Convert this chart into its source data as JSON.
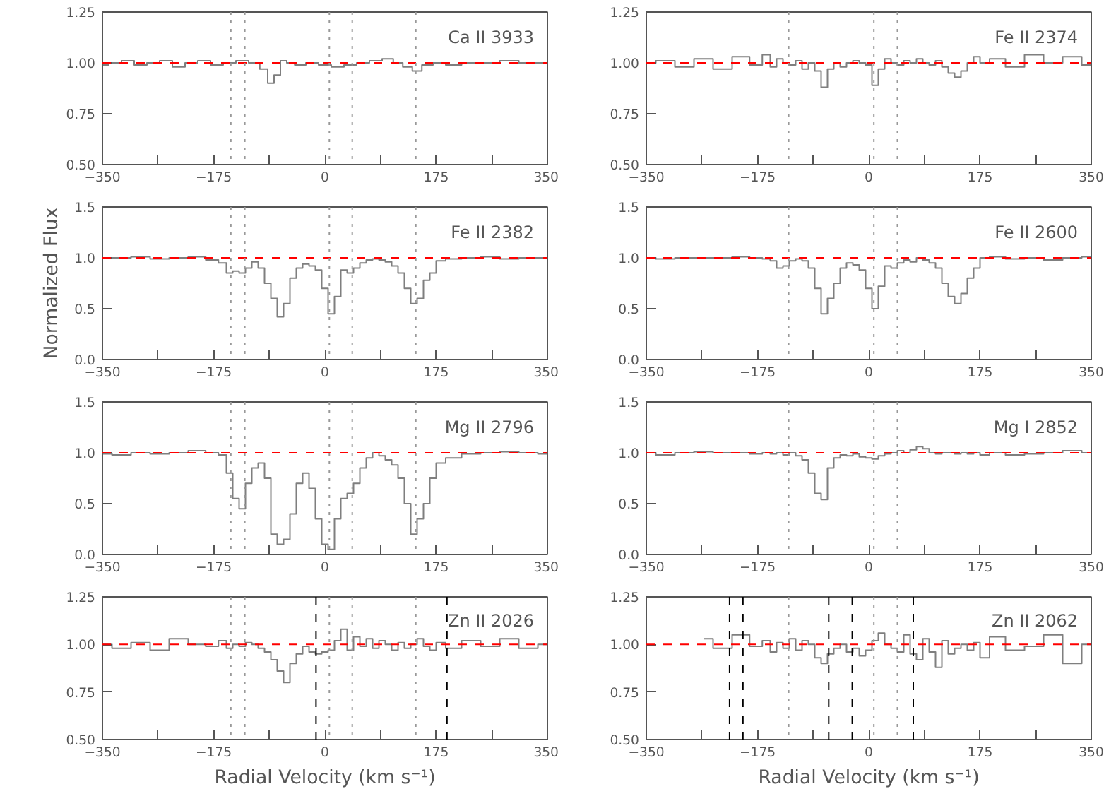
{
  "chart_data": [
    {
      "type": "step",
      "annotations": [
        "Ca II 3933"
      ],
      "xlim": [
        -350,
        350
      ],
      "ylim": [
        0.5,
        1.25
      ],
      "xticks": [
        -350,
        {
          "value": -262.5,
          "label": null
        },
        -175,
        {
          "value": -87.5,
          "label": null
        },
        0,
        {
          "value": 87.5,
          "label": null
        },
        175,
        {
          "value": 262.5,
          "label": null
        },
        350
      ],
      "yticks": [
        {
          "value": 0.5,
          "label": "0.50"
        },
        {
          "value": 0.75,
          "label": "0.75"
        },
        {
          "value": 1.0,
          "label": "1.00"
        },
        {
          "value": 1.25,
          "label": "1.25"
        }
      ],
      "x": [
        -350,
        -330,
        -310,
        -290,
        -270,
        -250,
        -230,
        -210,
        -190,
        -170,
        -150,
        -130,
        -110,
        -95,
        -85,
        -75,
        -65,
        -55,
        -40,
        -20,
        0,
        20,
        40,
        60,
        80,
        100,
        115,
        130,
        145,
        160,
        180,
        200,
        230,
        260,
        290,
        320,
        350
      ],
      "series": [
        {
          "color": "#7f7f7f",
          "values": [
            0.99,
            1.0,
            1.01,
            0.99,
            1.0,
            1.01,
            0.98,
            1.0,
            1.01,
            0.99,
            1.0,
            1.01,
            1.0,
            0.97,
            0.9,
            0.94,
            1.01,
            1.0,
            0.99,
            1.0,
            0.99,
            0.98,
            0.99,
            1.0,
            1.01,
            1.02,
            1.0,
            0.98,
            0.96,
            0.99,
            1.0,
            0.99,
            1.0,
            1.0,
            1.01,
            1.0,
            1.0
          ]
        }
      ],
      "ref_lines": [
        {
          "axis": "y",
          "value": 1.0,
          "color": "#ff0000",
          "line_style": "dashed"
        },
        {
          "axis": "x",
          "value": -148,
          "color": "#999999",
          "line_style": "dotted"
        },
        {
          "axis": "x",
          "value": -126,
          "color": "#999999",
          "line_style": "dotted"
        },
        {
          "axis": "x",
          "value": 7,
          "color": "#999999",
          "line_style": "dotted"
        },
        {
          "axis": "x",
          "value": 43,
          "color": "#999999",
          "line_style": "dotted"
        },
        {
          "axis": "x",
          "value": 143,
          "color": "#999999",
          "line_style": "dotted"
        }
      ]
    },
    {
      "type": "step",
      "annotations": [
        "Fe II 2374"
      ],
      "xlim": [
        -350,
        350
      ],
      "ylim": [
        0.5,
        1.25
      ],
      "xticks": [
        -350,
        {
          "value": -262.5,
          "label": null
        },
        -175,
        {
          "value": -87.5,
          "label": null
        },
        0,
        {
          "value": 87.5,
          "label": null
        },
        175,
        {
          "value": 262.5,
          "label": null
        },
        350
      ],
      "yticks": [
        {
          "value": 0.5,
          "label": "0.50"
        },
        {
          "value": 0.75,
          "label": "0.75"
        },
        {
          "value": 1.0,
          "label": "1.00"
        },
        {
          "value": 1.25,
          "label": "1.25"
        }
      ],
      "x": [
        -350,
        -320,
        -290,
        -260,
        -230,
        -200,
        -175,
        -160,
        -150,
        -140,
        -130,
        -120,
        -110,
        -100,
        -90,
        -80,
        -70,
        -60,
        -50,
        -40,
        -30,
        -20,
        -10,
        0,
        10,
        20,
        30,
        40,
        50,
        60,
        70,
        80,
        90,
        100,
        110,
        120,
        130,
        140,
        150,
        160,
        170,
        180,
        200,
        230,
        260,
        290,
        320,
        350
      ],
      "series": [
        {
          "color": "#7f7f7f",
          "values": [
            1.0,
            1.01,
            0.98,
            1.02,
            0.97,
            1.03,
            0.99,
            1.04,
            0.98,
            1.02,
            1.0,
            0.99,
            1.01,
            0.97,
            1.0,
            0.96,
            0.88,
            0.97,
            1.0,
            0.98,
            1.0,
            1.01,
            1.0,
            0.99,
            0.89,
            0.97,
            1.02,
            1.0,
            0.99,
            1.01,
            1.0,
            1.02,
            1.0,
            0.99,
            1.01,
            0.98,
            0.95,
            0.93,
            0.96,
            1.0,
            1.03,
            1.0,
            1.02,
            0.98,
            1.04,
            1.0,
            1.03,
            0.99
          ]
        }
      ],
      "ref_lines": [
        {
          "axis": "y",
          "value": 1.0,
          "color": "#ff0000",
          "line_style": "dashed"
        },
        {
          "axis": "x",
          "value": -126,
          "color": "#999999",
          "line_style": "dotted"
        },
        {
          "axis": "x",
          "value": 8,
          "color": "#999999",
          "line_style": "dotted"
        },
        {
          "axis": "x",
          "value": 45,
          "color": "#999999",
          "line_style": "dotted"
        }
      ]
    },
    {
      "type": "step",
      "annotations": [
        "Fe II 2382"
      ],
      "ylabel": "Normalized Flux",
      "xlim": [
        -350,
        350
      ],
      "ylim": [
        0,
        1.5
      ],
      "xticks": [
        -350,
        {
          "value": -262.5,
          "label": null
        },
        -175,
        {
          "value": -87.5,
          "label": null
        },
        0,
        {
          "value": 87.5,
          "label": null
        },
        175,
        {
          "value": 262.5,
          "label": null
        },
        350
      ],
      "yticks": [
        {
          "value": 0,
          "label": "0.0"
        },
        {
          "value": 0.5,
          "label": "0.5"
        },
        {
          "value": 1.0,
          "label": "1.0"
        },
        {
          "value": 1.5,
          "label": "1.5"
        }
      ],
      "x": [
        -350,
        -320,
        -290,
        -260,
        -230,
        -200,
        -175,
        -160,
        -150,
        -140,
        -130,
        -120,
        -110,
        -100,
        -90,
        -80,
        -70,
        -60,
        -50,
        -40,
        -30,
        -20,
        -10,
        0,
        10,
        20,
        30,
        40,
        50,
        60,
        70,
        80,
        90,
        100,
        110,
        120,
        130,
        140,
        150,
        160,
        170,
        180,
        200,
        230,
        260,
        290,
        320,
        350
      ],
      "series": [
        {
          "color": "#7f7f7f",
          "values": [
            1.0,
            1.0,
            1.01,
            0.99,
            1.0,
            1.01,
            0.98,
            0.95,
            0.85,
            0.87,
            0.85,
            0.9,
            0.96,
            0.9,
            0.75,
            0.6,
            0.42,
            0.55,
            0.8,
            0.9,
            0.94,
            0.92,
            0.88,
            0.7,
            0.45,
            0.62,
            0.88,
            0.85,
            0.9,
            0.95,
            0.98,
            0.99,
            0.98,
            0.96,
            0.92,
            0.85,
            0.7,
            0.55,
            0.6,
            0.78,
            0.85,
            0.97,
            0.99,
            1.0,
            1.01,
            0.99,
            1.0,
            1.0
          ]
        }
      ],
      "ref_lines": [
        {
          "axis": "y",
          "value": 1.0,
          "color": "#ff0000",
          "line_style": "dashed"
        },
        {
          "axis": "x",
          "value": -148,
          "color": "#999999",
          "line_style": "dotted"
        },
        {
          "axis": "x",
          "value": -126,
          "color": "#999999",
          "line_style": "dotted"
        },
        {
          "axis": "x",
          "value": 7,
          "color": "#999999",
          "line_style": "dotted"
        },
        {
          "axis": "x",
          "value": 43,
          "color": "#999999",
          "line_style": "dotted"
        },
        {
          "axis": "x",
          "value": 143,
          "color": "#999999",
          "line_style": "dotted"
        }
      ]
    },
    {
      "type": "step",
      "annotations": [
        "Fe II 2600"
      ],
      "xlim": [
        -350,
        350
      ],
      "ylim": [
        0,
        1.5
      ],
      "xticks": [
        -350,
        {
          "value": -262.5,
          "label": null
        },
        -175,
        {
          "value": -87.5,
          "label": null
        },
        0,
        {
          "value": 87.5,
          "label": null
        },
        175,
        {
          "value": 262.5,
          "label": null
        },
        350
      ],
      "yticks": [
        {
          "value": 0,
          "label": "0.0"
        },
        {
          "value": 0.5,
          "label": "0.5"
        },
        {
          "value": 1.0,
          "label": "1.0"
        },
        {
          "value": 1.5,
          "label": "1.5"
        }
      ],
      "x": [
        -350,
        -320,
        -290,
        -260,
        -230,
        -200,
        -175,
        -160,
        -150,
        -140,
        -130,
        -120,
        -110,
        -100,
        -90,
        -80,
        -70,
        -60,
        -50,
        -40,
        -30,
        -20,
        -10,
        0,
        10,
        20,
        30,
        40,
        50,
        60,
        70,
        80,
        90,
        100,
        110,
        120,
        130,
        140,
        150,
        160,
        170,
        180,
        200,
        230,
        260,
        290,
        320,
        350
      ],
      "series": [
        {
          "color": "#7f7f7f",
          "values": [
            1.0,
            0.99,
            1.0,
            1.0,
            1.0,
            1.01,
            1.0,
            0.99,
            0.97,
            0.9,
            0.92,
            0.97,
            0.99,
            0.97,
            0.9,
            0.7,
            0.45,
            0.6,
            0.75,
            0.9,
            0.95,
            0.93,
            0.88,
            0.7,
            0.5,
            0.72,
            0.92,
            0.9,
            0.95,
            0.98,
            0.96,
            1.0,
            0.98,
            0.95,
            0.9,
            0.75,
            0.62,
            0.55,
            0.65,
            0.8,
            0.9,
            1.0,
            1.01,
            0.99,
            1.0,
            0.98,
            1.0,
            1.01
          ]
        }
      ],
      "ref_lines": [
        {
          "axis": "y",
          "value": 1.0,
          "color": "#ff0000",
          "line_style": "dashed"
        },
        {
          "axis": "x",
          "value": -126,
          "color": "#999999",
          "line_style": "dotted"
        },
        {
          "axis": "x",
          "value": 8,
          "color": "#999999",
          "line_style": "dotted"
        },
        {
          "axis": "x",
          "value": 45,
          "color": "#999999",
          "line_style": "dotted"
        }
      ]
    },
    {
      "type": "step",
      "annotations": [
        "Mg II 2796"
      ],
      "xlim": [
        -350,
        350
      ],
      "ylim": [
        0,
        1.5
      ],
      "xticks": [
        -350,
        {
          "value": -262.5,
          "label": null
        },
        -175,
        {
          "value": -87.5,
          "label": null
        },
        0,
        {
          "value": 87.5,
          "label": null
        },
        175,
        {
          "value": 262.5,
          "label": null
        },
        350
      ],
      "yticks": [
        {
          "value": 0,
          "label": "0.0"
        },
        {
          "value": 0.5,
          "label": "0.5"
        },
        {
          "value": 1.0,
          "label": "1.0"
        },
        {
          "value": 1.5,
          "label": "1.5"
        }
      ],
      "x": [
        -350,
        -320,
        -290,
        -260,
        -230,
        -200,
        -175,
        -160,
        -150,
        -140,
        -130,
        -120,
        -110,
        -100,
        -90,
        -80,
        -70,
        -60,
        -50,
        -40,
        -30,
        -20,
        -10,
        0,
        10,
        20,
        30,
        40,
        50,
        60,
        70,
        80,
        90,
        100,
        110,
        120,
        130,
        140,
        150,
        160,
        170,
        180,
        200,
        230,
        260,
        290,
        320,
        350
      ],
      "series": [
        {
          "color": "#7f7f7f",
          "values": [
            0.99,
            0.98,
            1.0,
            0.99,
            1.0,
            1.02,
            1.0,
            0.98,
            0.8,
            0.55,
            0.45,
            0.7,
            0.85,
            0.9,
            0.75,
            0.2,
            0.1,
            0.15,
            0.4,
            0.7,
            0.8,
            0.65,
            0.35,
            0.1,
            0.05,
            0.35,
            0.55,
            0.6,
            0.7,
            0.85,
            0.95,
            1.0,
            0.97,
            0.93,
            0.88,
            0.75,
            0.5,
            0.2,
            0.35,
            0.5,
            0.75,
            0.9,
            0.95,
            0.99,
            1.0,
            1.01,
            1.0,
            0.99
          ]
        }
      ],
      "ref_lines": [
        {
          "axis": "y",
          "value": 1.0,
          "color": "#ff0000",
          "line_style": "dashed"
        },
        {
          "axis": "x",
          "value": -148,
          "color": "#999999",
          "line_style": "dotted"
        },
        {
          "axis": "x",
          "value": -126,
          "color": "#999999",
          "line_style": "dotted"
        },
        {
          "axis": "x",
          "value": 7,
          "color": "#999999",
          "line_style": "dotted"
        },
        {
          "axis": "x",
          "value": 43,
          "color": "#999999",
          "line_style": "dotted"
        },
        {
          "axis": "x",
          "value": 143,
          "color": "#999999",
          "line_style": "dotted"
        }
      ]
    },
    {
      "type": "step",
      "annotations": [
        "Mg I 2852"
      ],
      "xlim": [
        -350,
        350
      ],
      "ylim": [
        0,
        1.5
      ],
      "xticks": [
        -350,
        {
          "value": -262.5,
          "label": null
        },
        -175,
        {
          "value": -87.5,
          "label": null
        },
        0,
        {
          "value": 87.5,
          "label": null
        },
        175,
        {
          "value": 262.5,
          "label": null
        },
        350
      ],
      "yticks": [
        {
          "value": 0,
          "label": "0.0"
        },
        {
          "value": 0.5,
          "label": "0.5"
        },
        {
          "value": 1.0,
          "label": "1.0"
        },
        {
          "value": 1.5,
          "label": "1.5"
        }
      ],
      "x": [
        -350,
        -320,
        -290,
        -260,
        -230,
        -200,
        -175,
        -160,
        -150,
        -140,
        -130,
        -120,
        -110,
        -100,
        -90,
        -80,
        -70,
        -60,
        -50,
        -40,
        -30,
        -20,
        -10,
        0,
        10,
        20,
        30,
        40,
        50,
        60,
        70,
        80,
        90,
        100,
        110,
        120,
        130,
        140,
        150,
        160,
        170,
        180,
        200,
        230,
        260,
        290,
        320,
        350
      ],
      "series": [
        {
          "color": "#7f7f7f",
          "values": [
            1.0,
            0.98,
            1.0,
            1.01,
            1.0,
            1.0,
            0.99,
            1.0,
            0.99,
            1.0,
            0.98,
            1.0,
            0.97,
            0.93,
            0.8,
            0.6,
            0.54,
            0.85,
            0.95,
            0.98,
            0.97,
            0.99,
            0.96,
            0.95,
            0.94,
            0.97,
            0.99,
            1.0,
            1.02,
            1.0,
            1.03,
            1.06,
            1.04,
            1.0,
            0.99,
            1.0,
            1.0,
            0.99,
            1.0,
            0.99,
            1.0,
            0.98,
            1.0,
            0.98,
            0.99,
            1.0,
            1.02,
            1.0
          ]
        }
      ],
      "ref_lines": [
        {
          "axis": "y",
          "value": 1.0,
          "color": "#ff0000",
          "line_style": "dashed"
        },
        {
          "axis": "x",
          "value": -126,
          "color": "#999999",
          "line_style": "dotted"
        },
        {
          "axis": "x",
          "value": 8,
          "color": "#999999",
          "line_style": "dotted"
        },
        {
          "axis": "x",
          "value": 45,
          "color": "#999999",
          "line_style": "dotted"
        }
      ]
    },
    {
      "type": "step",
      "annotations": [
        "Zn II 2026"
      ],
      "xlabel": "Radial Velocity (km s⁻¹)",
      "xlim": [
        -350,
        350
      ],
      "ylim": [
        0.5,
        1.25
      ],
      "xticks": [
        -350,
        {
          "value": -262.5,
          "label": null
        },
        -175,
        {
          "value": -87.5,
          "label": null
        },
        0,
        {
          "value": 87.5,
          "label": null
        },
        175,
        {
          "value": 262.5,
          "label": null
        },
        350
      ],
      "yticks": [
        {
          "value": 0.5,
          "label": "0.50"
        },
        {
          "value": 0.75,
          "label": "0.75"
        },
        {
          "value": 1.0,
          "label": "1.00"
        },
        {
          "value": 1.25,
          "label": "1.25"
        }
      ],
      "x": [
        -350,
        -320,
        -290,
        -260,
        -230,
        -200,
        -175,
        -160,
        -150,
        -140,
        -130,
        -120,
        -110,
        -100,
        -90,
        -80,
        -70,
        -60,
        -50,
        -40,
        -30,
        -20,
        -10,
        0,
        10,
        20,
        30,
        40,
        50,
        60,
        70,
        80,
        90,
        100,
        110,
        120,
        130,
        140,
        150,
        160,
        170,
        180,
        200,
        230,
        260,
        290,
        320,
        350
      ],
      "series": [
        {
          "color": "#7f7f7f",
          "values": [
            1.0,
            0.98,
            1.01,
            0.97,
            1.03,
            1.0,
            0.99,
            1.02,
            0.98,
            1.0,
            0.99,
            1.01,
            1.0,
            0.98,
            0.96,
            0.92,
            0.86,
            0.8,
            0.9,
            0.95,
            0.99,
            0.96,
            0.95,
            0.96,
            0.97,
            1.02,
            1.08,
            0.97,
            1.04,
            0.99,
            1.03,
            0.98,
            1.02,
            1.0,
            0.97,
            1.01,
            0.98,
            1.0,
            1.03,
            0.99,
            0.97,
            1.01,
            0.98,
            1.02,
            0.99,
            1.03,
            0.98,
            1.0
          ]
        }
      ],
      "ref_lines": [
        {
          "axis": "y",
          "value": 1.0,
          "color": "#ff0000",
          "line_style": "dashed"
        },
        {
          "axis": "x",
          "value": -148,
          "color": "#999999",
          "line_style": "dotted"
        },
        {
          "axis": "x",
          "value": -126,
          "color": "#999999",
          "line_style": "dotted"
        },
        {
          "axis": "x",
          "value": 7,
          "color": "#999999",
          "line_style": "dotted"
        },
        {
          "axis": "x",
          "value": 43,
          "color": "#999999",
          "line_style": "dotted"
        },
        {
          "axis": "x",
          "value": 143,
          "color": "#999999",
          "line_style": "dotted"
        },
        {
          "axis": "x",
          "value": -14,
          "color": "#000000",
          "line_style": "dashed"
        },
        {
          "axis": "x",
          "value": 192,
          "color": "#000000",
          "line_style": "dashed"
        }
      ]
    },
    {
      "type": "step",
      "annotations": [
        "Zn II 2062"
      ],
      "xlabel": "Radial Velocity (km s⁻¹)",
      "xlim": [
        -350,
        350
      ],
      "ylim": [
        0.5,
        1.25
      ],
      "xticks": [
        -350,
        {
          "value": -262.5,
          "label": null
        },
        -175,
        {
          "value": -87.5,
          "label": null
        },
        0,
        {
          "value": 87.5,
          "label": null
        },
        175,
        {
          "value": 262.5,
          "label": null
        },
        350
      ],
      "yticks": [
        {
          "value": 0.5,
          "label": "0.50"
        },
        {
          "value": 0.75,
          "label": "0.75"
        },
        {
          "value": 1.0,
          "label": "1.00"
        },
        {
          "value": 1.25,
          "label": "1.25"
        }
      ],
      "x": [
        -260,
        -230,
        -200,
        -175,
        -160,
        -150,
        -140,
        -130,
        -120,
        -110,
        -100,
        -90,
        -80,
        -70,
        -60,
        -50,
        -40,
        -30,
        -20,
        -10,
        0,
        10,
        20,
        30,
        40,
        50,
        60,
        70,
        80,
        90,
        100,
        110,
        120,
        130,
        140,
        150,
        160,
        170,
        180,
        200,
        230,
        260,
        290,
        320,
        350
      ],
      "series": [
        {
          "color": "#7f7f7f",
          "values": [
            1.03,
            0.98,
            1.05,
            0.99,
            1.02,
            0.96,
            1.01,
            0.98,
            1.03,
            0.97,
            1.02,
            1.0,
            0.93,
            0.9,
            0.95,
            0.98,
            1.0,
            0.96,
            0.98,
            0.94,
            0.97,
            1.02,
            1.06,
            1.0,
            0.98,
            0.96,
            1.05,
            0.95,
            0.92,
            1.03,
            0.96,
            0.88,
            1.02,
            0.95,
            0.98,
            1.0,
            0.97,
            1.01,
            0.93,
            1.04,
            0.97,
            0.99,
            1.05,
            0.9,
            1.0
          ]
        }
      ],
      "ref_lines": [
        {
          "axis": "y",
          "value": 1.0,
          "color": "#ff0000",
          "line_style": "dashed"
        },
        {
          "axis": "x",
          "value": -126,
          "color": "#999999",
          "line_style": "dotted"
        },
        {
          "axis": "x",
          "value": 8,
          "color": "#999999",
          "line_style": "dotted"
        },
        {
          "axis": "x",
          "value": 45,
          "color": "#999999",
          "line_style": "dotted"
        },
        {
          "axis": "x",
          "value": -219,
          "color": "#000000",
          "line_style": "dashed"
        },
        {
          "axis": "x",
          "value": -198,
          "color": "#000000",
          "line_style": "dashed"
        },
        {
          "axis": "x",
          "value": -63,
          "color": "#000000",
          "line_style": "dashed"
        },
        {
          "axis": "x",
          "value": -26,
          "color": "#000000",
          "line_style": "dashed"
        },
        {
          "axis": "x",
          "value": 70,
          "color": "#000000",
          "line_style": "dashed"
        }
      ]
    }
  ]
}
